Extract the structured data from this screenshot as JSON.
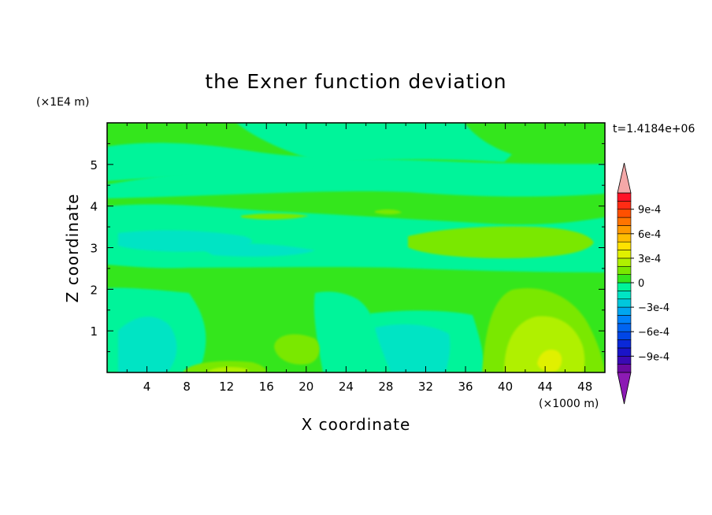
{
  "chart_data": {
    "type": "heatmap",
    "title": "the Exner function deviation",
    "xlabel": "X coordinate",
    "ylabel": "Z coordinate",
    "x_unit": "(×1000 m)",
    "y_unit": "(×1E4 m)",
    "time_label": "t=1.4184e+06",
    "xlim": [
      0,
      50
    ],
    "ylim": [
      0,
      6
    ],
    "x_ticks": [
      "4",
      "8",
      "12",
      "16",
      "20",
      "24",
      "28",
      "32",
      "36",
      "40",
      "44",
      "48"
    ],
    "y_ticks": [
      "1",
      "2",
      "3",
      "4",
      "5"
    ],
    "colorbar": {
      "labels": [
        "9e-4",
        "6e-4",
        "3e-4",
        "0",
        "−3e-4",
        "−6e-4",
        "−9e-4"
      ],
      "levels": [
        -0.0011,
        -0.001,
        -0.0009,
        -0.0008,
        -0.0007,
        -0.0006,
        -0.0005,
        -0.0004,
        -0.0003,
        -0.0002,
        -0.0001,
        0,
        0.0001,
        0.0002,
        0.0003,
        0.0004,
        0.0005,
        0.0006,
        0.0007,
        0.0008,
        0.0009,
        0.001,
        0.0011
      ],
      "colors": [
        "#6a0aa0",
        "#3a0ab4",
        "#1a14c8",
        "#0a28d8",
        "#0046e6",
        "#0064f0",
        "#0082fa",
        "#00a6f0",
        "#00c8dc",
        "#00e4c4",
        "#00f49a",
        "#34e61c",
        "#7ae800",
        "#b0f000",
        "#e0f000",
        "#ffe200",
        "#ffbe00",
        "#ff9a00",
        "#ff7400",
        "#ff5000",
        "#ff2c14",
        "#ff1428"
      ],
      "min_color": "#8c1ab4",
      "max_color": "#f4a8a8"
    },
    "field_colors": {
      "m1": "#00f49a",
      "m2": "#00e4c4",
      "p1": "#34e61c",
      "p2": "#7ae800",
      "p3": "#b0f000",
      "p4": "#e0f000"
    }
  }
}
